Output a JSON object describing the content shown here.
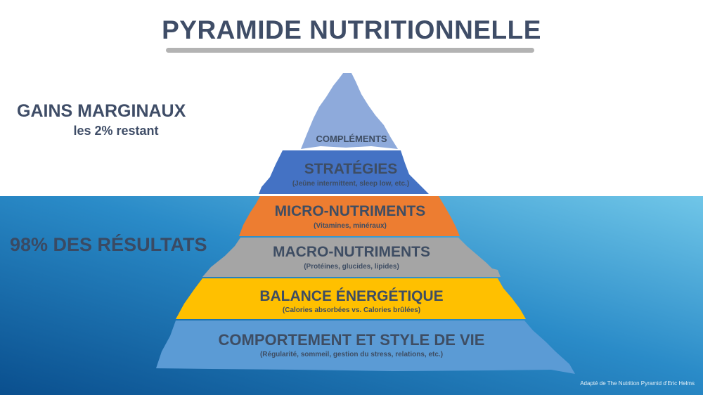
{
  "title": "PYRAMIDE NUTRITIONNELLE",
  "gains": {
    "title": "GAINS MARGINAUX",
    "subtitle": "les 2% restant"
  },
  "results_label": "98% DES RÉSULTATS",
  "layers": [
    {
      "id": "complements",
      "label": "COMPLÉMENTS",
      "sub": ""
    },
    {
      "id": "strategies",
      "label": "STRATÉGIES",
      "sub": "(Jeûne intermittent, sleep low, etc.)"
    },
    {
      "id": "micro",
      "label": "MICRO-NUTRIMENTS",
      "sub": "(Vitamines, minéraux)"
    },
    {
      "id": "macro",
      "label": "MACRO-NUTRIMENTS",
      "sub": "(Protéines, glucides, lipides)"
    },
    {
      "id": "balance",
      "label": "BALANCE ÉNERGÉTIQUE",
      "sub": "(Calories absorbées vs. Calories brûlées)"
    },
    {
      "id": "comportement",
      "label": "COMPORTEMENT ET STYLE DE VIE",
      "sub": "(Régularité, sommeil, gestion du stress, relations, etc.)"
    }
  ],
  "credit": "Adapté de The Nutrition Pyramid d'Eric Helms",
  "colors": {
    "complements": "#8eaadb",
    "strategies": "#4472c4",
    "micro": "#ed7d31",
    "macro": "#a5a5a5",
    "balance": "#ffc000",
    "comportement": "#5b9bd5",
    "title_text": "#3f4d67",
    "water_dark": "#0b5d9c",
    "water_light": "#6cc4e6"
  }
}
